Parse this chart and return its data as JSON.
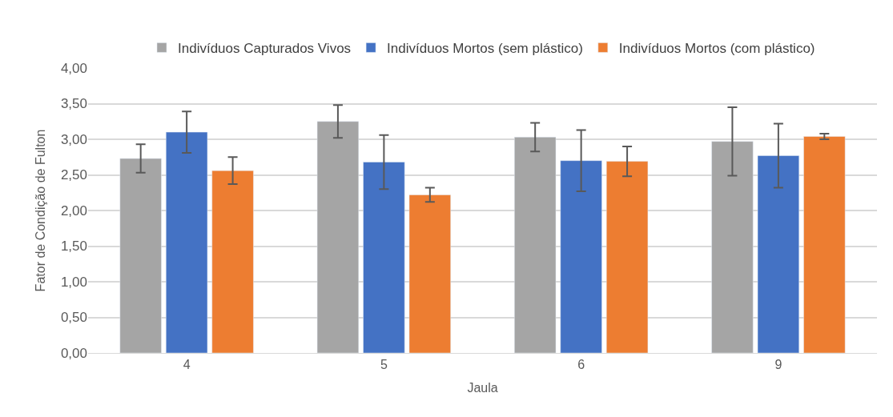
{
  "chart_data": {
    "type": "bar",
    "xlabel": "Jaula",
    "ylabel": "Fator de Condição de Fulton",
    "categories": [
      "4",
      "5",
      "6",
      "9"
    ],
    "series": [
      {
        "name": "Indivíduos Capturados Vivos",
        "color": "#a5a5a5",
        "values": [
          2.73,
          3.25,
          3.03,
          2.97
        ],
        "errors": [
          0.2,
          0.23,
          0.2,
          0.48
        ]
      },
      {
        "name": "Indivíduos Mortos (sem plástico)",
        "color": "#4472c4",
        "values": [
          3.1,
          2.68,
          2.7,
          2.77
        ],
        "errors": [
          0.29,
          0.38,
          0.43,
          0.45
        ]
      },
      {
        "name": "Indivíduos Mortos (com plástico)",
        "color": "#ed7d31",
        "values": [
          2.56,
          2.22,
          2.69,
          3.04
        ],
        "errors": [
          0.19,
          0.1,
          0.21,
          0.04
        ]
      }
    ],
    "ylim": [
      0,
      4
    ],
    "yticks": [
      {
        "value": 0,
        "label": "0,00"
      },
      {
        "value": 0.5,
        "label": "0,50"
      },
      {
        "value": 1,
        "label": "1,00"
      },
      {
        "value": 1.5,
        "label": "1,50"
      },
      {
        "value": 2,
        "label": "2,00"
      },
      {
        "value": 2.5,
        "label": "2,50"
      },
      {
        "value": 3,
        "label": "3,00"
      },
      {
        "value": 3.5,
        "label": "3,50"
      },
      {
        "value": 4,
        "label": "4,00"
      }
    ],
    "grid": "y",
    "legend": "top"
  }
}
